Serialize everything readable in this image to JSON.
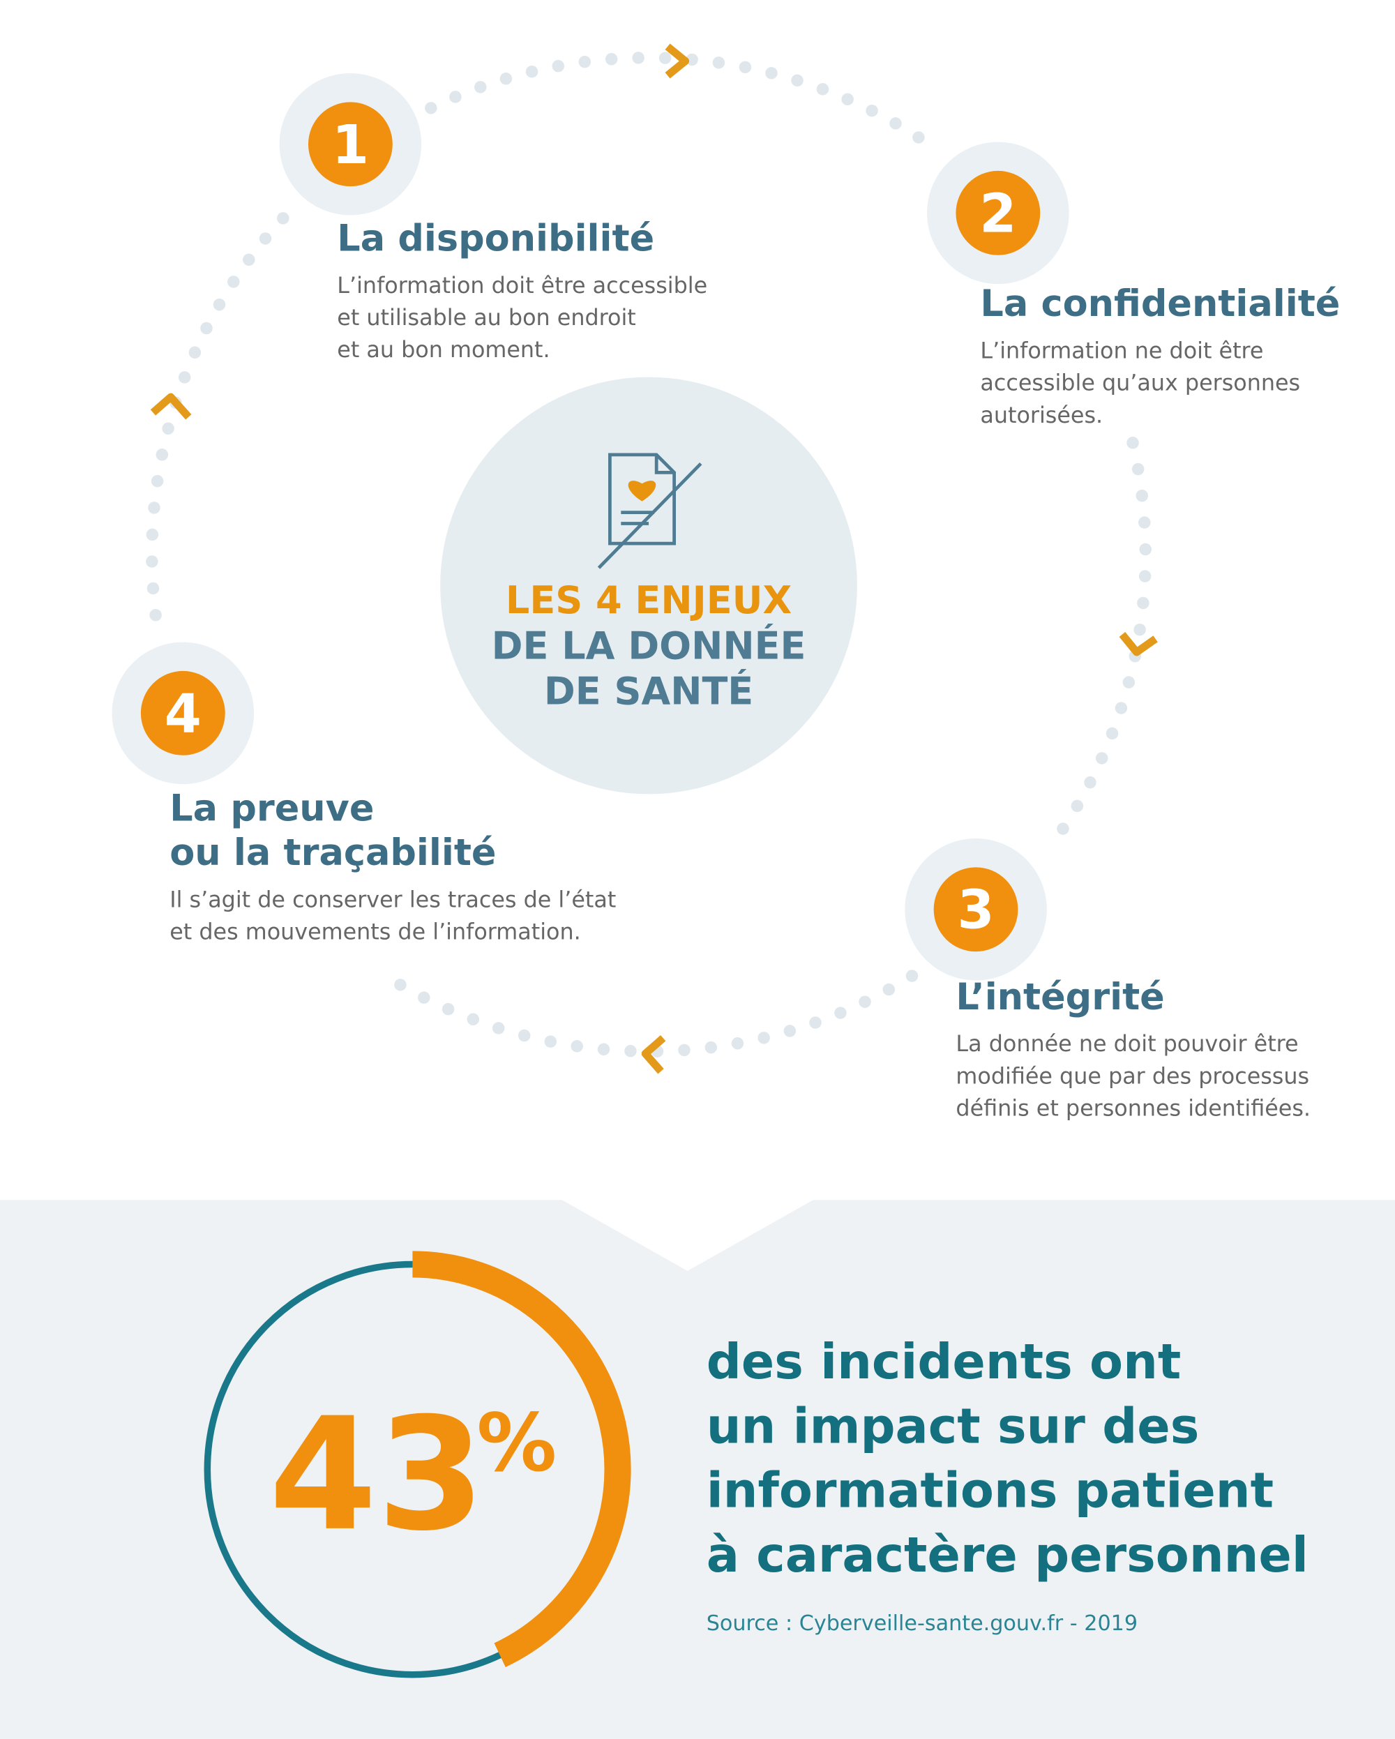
{
  "header": {
    "title_lines": [
      "LES 4 ENJEUX",
      "DE LA DONNÉE",
      "DE SANTÉ"
    ]
  },
  "items": [
    {
      "number": "1",
      "title_lines": [
        "La disponibilité"
      ],
      "body_lines": [
        "L’information doit être accessible",
        "et utilisable au bon endroit",
        "et au bon moment."
      ]
    },
    {
      "number": "2",
      "title_lines": [
        "La confidentialité"
      ],
      "body_lines": [
        "L’information ne doit être",
        "accessible qu’aux personnes",
        "autorisées."
      ]
    },
    {
      "number": "3",
      "title_lines": [
        "L’intégrité"
      ],
      "body_lines": [
        "La donnée ne doit pouvoir être",
        "modifiée que par des processus",
        "définis et personnes identifiées."
      ]
    },
    {
      "number": "4",
      "title_lines": [
        "La preuve",
        "ou la traçabilité"
      ],
      "body_lines": [
        "Il s’agit de conserver les traces de l’état",
        "et des mouvements de l’information."
      ]
    }
  ],
  "stat": {
    "value": 43,
    "unit": "%",
    "text_lines": [
      "des incidents ont",
      "un impact sur des",
      "informations patient",
      "à caractère personnel"
    ],
    "source": "Source : Cyberveille-sante.gouv.fr - 2019"
  }
}
